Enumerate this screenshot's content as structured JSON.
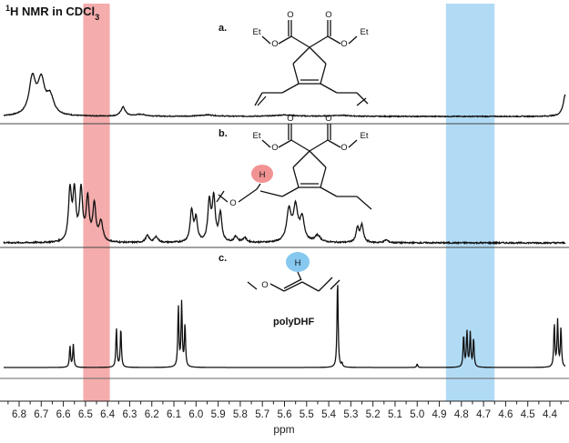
{
  "chart_data": {
    "type": "line",
    "title": "1H NMR in CDCl3",
    "title_parts": {
      "sup": "1",
      "main": "H NMR in CDCl",
      "sub": "3"
    },
    "xlabel": "ppm",
    "x_reversed": true,
    "xlim": [
      6.87,
      4.33
    ],
    "x_ticks": [
      6.8,
      6.7,
      6.6,
      6.5,
      6.4,
      6.3,
      6.2,
      6.1,
      6.0,
      5.9,
      5.8,
      5.7,
      5.6,
      5.5,
      5.4,
      5.3,
      5.2,
      5.1,
      5.0,
      4.9,
      4.8,
      4.7,
      4.6,
      4.5,
      4.4
    ],
    "x_tick_labels": [
      "6.8",
      "6.7",
      "6.6",
      "6.5",
      "6.4",
      "6.3",
      "6.2",
      "6.1",
      "6.0",
      "5.9",
      "5.8",
      "5.7",
      "5.6",
      "5.5",
      "5.4",
      "5.3",
      "5.2",
      "5.1",
      "5.0",
      "4.9",
      "4.8",
      "4.7",
      "4.6",
      "4.5",
      "4.4"
    ],
    "highlights": [
      {
        "from": 6.51,
        "to": 6.39,
        "color": "#f08080"
      },
      {
        "from": 4.87,
        "to": 4.65,
        "color": "#87c8f0"
      }
    ],
    "series": [
      {
        "panel": "a.",
        "peaks": [
          {
            "ppm": 6.74,
            "height": 1.0,
            "width": 0.018
          },
          {
            "ppm": 6.7,
            "height": 0.9,
            "width": 0.018
          },
          {
            "ppm": 6.66,
            "height": 0.5,
            "width": 0.02
          },
          {
            "ppm": 6.33,
            "height": 0.25,
            "width": 0.012
          },
          {
            "ppm": 6.25,
            "height": 0.05,
            "width": 0.03
          },
          {
            "ppm": 5.95,
            "height": 0.04,
            "width": 0.04
          },
          {
            "ppm": 5.6,
            "height": 0.04,
            "width": 0.05
          },
          {
            "ppm": 5.35,
            "height": 0.03,
            "width": 0.05
          },
          {
            "ppm": 4.33,
            "height": 0.6,
            "width": 0.012
          }
        ],
        "label_structure": [
          "Et",
          "O",
          "O",
          "O",
          "O",
          "Et"
        ]
      },
      {
        "panel": "b.",
        "peaks": [
          {
            "ppm": 6.57,
            "height": 0.9,
            "width": 0.008
          },
          {
            "ppm": 6.55,
            "height": 0.85,
            "width": 0.008
          },
          {
            "ppm": 6.52,
            "height": 0.9,
            "width": 0.008
          },
          {
            "ppm": 6.49,
            "height": 0.75,
            "width": 0.008
          },
          {
            "ppm": 6.46,
            "height": 0.65,
            "width": 0.008
          },
          {
            "ppm": 6.43,
            "height": 0.35,
            "width": 0.01
          },
          {
            "ppm": 6.22,
            "height": 0.12,
            "width": 0.01
          },
          {
            "ppm": 6.18,
            "height": 0.1,
            "width": 0.01
          },
          {
            "ppm": 6.02,
            "height": 0.55,
            "width": 0.008
          },
          {
            "ppm": 6.0,
            "height": 0.4,
            "width": 0.008
          },
          {
            "ppm": 5.94,
            "height": 0.7,
            "width": 0.008
          },
          {
            "ppm": 5.92,
            "height": 0.75,
            "width": 0.008
          },
          {
            "ppm": 5.89,
            "height": 0.5,
            "width": 0.008
          },
          {
            "ppm": 5.82,
            "height": 0.1,
            "width": 0.01
          },
          {
            "ppm": 5.78,
            "height": 0.08,
            "width": 0.01
          },
          {
            "ppm": 5.58,
            "height": 0.55,
            "width": 0.012
          },
          {
            "ppm": 5.55,
            "height": 0.6,
            "width": 0.012
          },
          {
            "ppm": 5.52,
            "height": 0.4,
            "width": 0.012
          },
          {
            "ppm": 5.45,
            "height": 0.12,
            "width": 0.015
          },
          {
            "ppm": 5.27,
            "height": 0.25,
            "width": 0.008
          },
          {
            "ppm": 5.25,
            "height": 0.3,
            "width": 0.008
          },
          {
            "ppm": 5.14,
            "height": 0.05,
            "width": 0.01
          }
        ],
        "label_structure": [
          "Et",
          "O",
          "O",
          "O",
          "O",
          "Et",
          "H",
          "O"
        ]
      },
      {
        "panel": "c.",
        "name": "polyDHF",
        "peaks": [
          {
            "ppm": 6.57,
            "height": 0.3,
            "width": 0.003
          },
          {
            "ppm": 6.555,
            "height": 0.32,
            "width": 0.003
          },
          {
            "ppm": 6.36,
            "height": 0.55,
            "width": 0.003
          },
          {
            "ppm": 6.34,
            "height": 0.55,
            "width": 0.003
          },
          {
            "ppm": 6.08,
            "height": 0.85,
            "width": 0.003
          },
          {
            "ppm": 6.065,
            "height": 0.9,
            "width": 0.003
          },
          {
            "ppm": 6.05,
            "height": 0.6,
            "width": 0.003
          },
          {
            "ppm": 5.36,
            "height": 1.25,
            "width": 0.003
          },
          {
            "ppm": 5.34,
            "height": 0.05,
            "width": 0.003
          },
          {
            "ppm": 5.0,
            "height": 0.05,
            "width": 0.003
          },
          {
            "ppm": 4.79,
            "height": 0.45,
            "width": 0.003
          },
          {
            "ppm": 4.775,
            "height": 0.5,
            "width": 0.003
          },
          {
            "ppm": 4.76,
            "height": 0.48,
            "width": 0.003
          },
          {
            "ppm": 4.745,
            "height": 0.4,
            "width": 0.003
          },
          {
            "ppm": 4.38,
            "height": 0.6,
            "width": 0.003
          },
          {
            "ppm": 4.365,
            "height": 0.65,
            "width": 0.003
          },
          {
            "ppm": 4.35,
            "height": 0.55,
            "width": 0.003
          }
        ],
        "label_structure": [
          "O",
          "H"
        ]
      }
    ],
    "colors": {
      "line": "#111111",
      "axis": "#222222"
    }
  }
}
